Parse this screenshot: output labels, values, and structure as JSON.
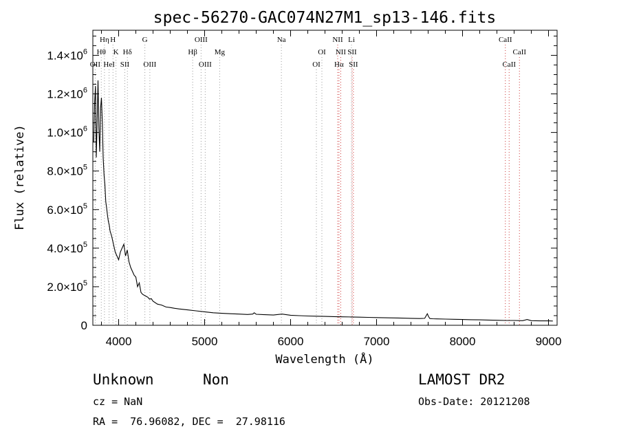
{
  "chart_data": {
    "type": "line",
    "title": "spec-56270-GAC074N27M1_sp13-146.fits",
    "xlabel": "Wavelength (Å)",
    "ylabel": "Flux (relative)",
    "xlim": [
      3700,
      9100
    ],
    "ylim": [
      0,
      1530000
    ],
    "x_ticks": [
      4000,
      5000,
      6000,
      7000,
      8000,
      9000
    ],
    "y_ticks": [
      {
        "value": 0,
        "mant": "0",
        "exp": ""
      },
      {
        "value": 200000,
        "mant": "2.0×10",
        "exp": "5"
      },
      {
        "value": 400000,
        "mant": "4.0×10",
        "exp": "5"
      },
      {
        "value": 600000,
        "mant": "6.0×10",
        "exp": "5"
      },
      {
        "value": 800000,
        "mant": "8.0×10",
        "exp": "5"
      },
      {
        "value": 1000000,
        "mant": "1.0×10",
        "exp": "6"
      },
      {
        "value": 1200000,
        "mant": "1.2×10",
        "exp": "6"
      },
      {
        "value": 1400000,
        "mant": "1.4×10",
        "exp": "6"
      }
    ],
    "spectrum": {
      "x": [
        3710,
        3720,
        3730,
        3740,
        3750,
        3760,
        3770,
        3780,
        3790,
        3800,
        3810,
        3820,
        3830,
        3840,
        3850,
        3860,
        3870,
        3880,
        3890,
        3900,
        3920,
        3940,
        3960,
        3980,
        4000,
        4020,
        4040,
        4060,
        4080,
        4100,
        4120,
        4140,
        4160,
        4180,
        4200,
        4220,
        4240,
        4260,
        4280,
        4300,
        4320,
        4340,
        4360,
        4380,
        4400,
        4450,
        4500,
        4550,
        4600,
        4650,
        4700,
        4800,
        4900,
        5000,
        5100,
        5200,
        5300,
        5400,
        5500,
        5560,
        5577,
        5600,
        5700,
        5800,
        5900,
        6000,
        6100,
        6200,
        6300,
        6400,
        6500,
        6600,
        6700,
        6800,
        6900,
        7000,
        7100,
        7200,
        7300,
        7400,
        7500,
        7560,
        7590,
        7605,
        7620,
        7650,
        7700,
        7800,
        7900,
        8000,
        8100,
        8200,
        8300,
        8400,
        8500,
        8600,
        8700,
        8750,
        8800,
        8900,
        9000,
        9050
      ],
      "y": [
        950000,
        1150000,
        1240000,
        870000,
        1060000,
        1270000,
        1020000,
        900000,
        1130000,
        1180000,
        1050000,
        870000,
        780000,
        730000,
        640000,
        610000,
        570000,
        540000,
        520000,
        490000,
        460000,
        420000,
        380000,
        360000,
        340000,
        380000,
        400000,
        420000,
        360000,
        390000,
        330000,
        300000,
        280000,
        260000,
        250000,
        200000,
        220000,
        170000,
        160000,
        155000,
        150000,
        145000,
        135000,
        138000,
        125000,
        110000,
        105000,
        95000,
        92000,
        88000,
        85000,
        80000,
        75000,
        70000,
        65000,
        62000,
        60000,
        58000,
        56000,
        58000,
        65000,
        57000,
        55000,
        53000,
        58000,
        52000,
        50000,
        48000,
        47000,
        46000,
        45000,
        44000,
        43000,
        42000,
        41000,
        40000,
        39000,
        38000,
        37000,
        36000,
        35000,
        36000,
        60000,
        45000,
        35000,
        34000,
        33000,
        32000,
        31000,
        30000,
        29000,
        28000,
        27000,
        26000,
        25000,
        25000,
        24000,
        30000,
        24000,
        23000,
        23000,
        22000
      ]
    },
    "lines": [
      {
        "label": "OII",
        "x": 3727,
        "level": 3
      },
      {
        "label": "Hθ",
        "x": 3798,
        "level": 2
      },
      {
        "label": "Hη",
        "x": 3835,
        "level": 1
      },
      {
        "label": "H",
        "x": 3934,
        "level": 1
      },
      {
        "label": "K",
        "x": 3969,
        "level": 2
      },
      {
        "label": "HeI",
        "x": 3889,
        "level": 3
      },
      {
        "label": "SII",
        "x": 4072,
        "level": 3
      },
      {
        "label": "Hδ",
        "x": 4102,
        "level": 2
      },
      {
        "label": "G",
        "x": 4305,
        "level": 1
      },
      {
        "label": "OIII",
        "x": 4363,
        "level": 3
      },
      {
        "label": "Hβ",
        "x": 4861,
        "level": 2
      },
      {
        "label": "OIII",
        "x": 4959,
        "level": 1
      },
      {
        "label": "OIII",
        "x": 5007,
        "level": 3
      },
      {
        "label": "Mg",
        "x": 5175,
        "level": 2
      },
      {
        "label": "Na",
        "x": 5893,
        "level": 1
      },
      {
        "label": "OI",
        "x": 6300,
        "level": 3
      },
      {
        "label": "OI",
        "x": 6364,
        "level": 2
      },
      {
        "label": "NII",
        "x": 6548,
        "level": 1
      },
      {
        "label": "NII",
        "x": 6583,
        "level": 2
      },
      {
        "label": "Hα",
        "x": 6563,
        "level": 3
      },
      {
        "label": "Li",
        "x": 6708,
        "level": 1
      },
      {
        "label": "SII",
        "x": 6716,
        "level": 2
      },
      {
        "label": "SII",
        "x": 6731,
        "level": 3
      },
      {
        "label": "CaII",
        "x": 8498,
        "level": 1
      },
      {
        "label": "CaII",
        "x": 8542,
        "level": 3
      },
      {
        "label": "CaII",
        "x": 8662,
        "level": 2
      }
    ]
  },
  "info": {
    "class": "Unknown",
    "subclass": "Non",
    "cz": "cz = NaN",
    "coords": "RA =  76.96082, DEC =  27.98116",
    "survey": "LAMOST DR2",
    "obs_date": "Obs-Date: 20121208"
  },
  "colors": {
    "spectrum": "#000000",
    "line_markers": "#999999",
    "emission_markers": "#cc3333"
  }
}
